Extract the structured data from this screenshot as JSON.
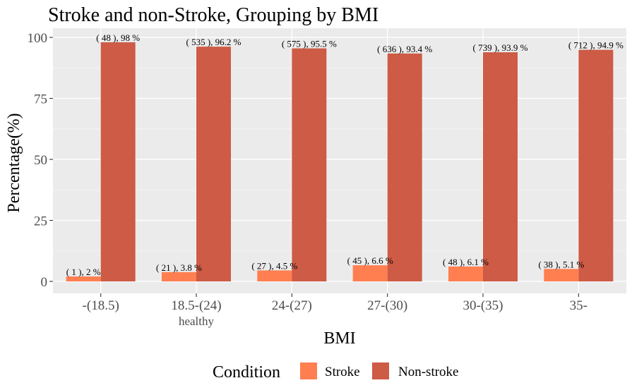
{
  "chart_data": {
    "type": "bar",
    "title": "Stroke and non-Stroke, Grouping by BMI",
    "xlabel": "BMI",
    "ylabel": "Percentage(%)",
    "categories": [
      "-(18.5)",
      "18.5-(24)",
      "24-(27)",
      "27-(30)",
      "30-(35)",
      "35-"
    ],
    "category_sublabels": [
      "",
      "healthy",
      "",
      "",
      "",
      ""
    ],
    "yticks": [
      0,
      25,
      50,
      75,
      100
    ],
    "ylim": [
      0,
      104
    ],
    "grid": true,
    "legend": {
      "title": "Condition",
      "position": "bottom"
    },
    "series": [
      {
        "name": "Stroke",
        "color": "#FF7F50",
        "values": [
          2,
          3.8,
          4.5,
          6.6,
          6.1,
          5.1
        ],
        "labels": [
          "( 1 ), 2 %",
          "( 21 ), 3.8 %",
          "( 27 ), 4.5 %",
          "( 45 ), 6.6 %",
          "( 48 ), 6.1 %",
          "( 38 ), 5.1 %"
        ]
      },
      {
        "name": "Non-stroke",
        "color": "#CD5B45",
        "values": [
          98,
          96.2,
          95.5,
          93.4,
          93.9,
          94.9
        ],
        "labels": [
          "( 48 ), 98 %",
          "( 535 ), 96.2 %",
          "( 575 ), 95.5 %",
          "( 636 ), 93.4 %",
          "( 739 ), 93.9 %",
          "( 712 ), 94.9 %"
        ]
      }
    ]
  }
}
